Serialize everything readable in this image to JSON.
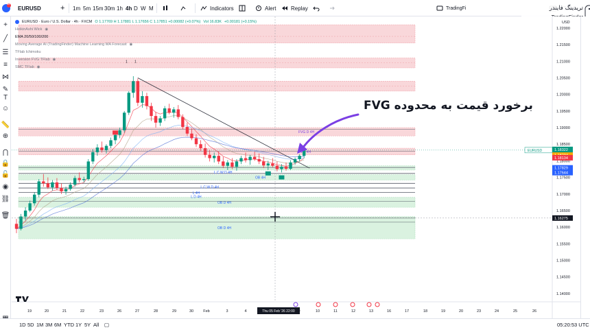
{
  "toolbar": {
    "badge_count": "18",
    "symbol": "EURUSD",
    "add_symbol": "+",
    "timeframes": [
      "1m",
      "5m",
      "15m",
      "30m",
      "1h",
      "4h",
      "D",
      "W",
      "M"
    ],
    "active_timeframe": "4h",
    "indicators_label": "Indicators",
    "alert_label": "Alert",
    "replay_label": "Replay",
    "trade_label": "Trade",
    "tradingfinder_short": "TradingFi"
  },
  "watermark": {
    "brand_fa": "تریدینگ فایندر",
    "brand_en": "TradingFinder"
  },
  "legend": {
    "title": "EURUSD · Euro / U.S. Dollar · 4h · FXCM",
    "ohlc": "O 1.17769  H 1.17881  L 1.17656  C 1.17851  +0.00082 (+0.07%)",
    "volume": "Vol 16.83K",
    "change": "+0.00181 (+0.15%)",
    "indicators": [
      "HeikinAshi Wick",
      "EMA 20/50/100/200",
      "Moving Average AI (TradingFinder) Machine Learning MA Forecast",
      "TFlab Ichimoku",
      "Inversion FVG TFlab",
      "SMC TFlab"
    ]
  },
  "annotation": "برخورد قیمت به محدوده FVG",
  "price_axis": {
    "currency": "USD",
    "current_symbol_label": "EURUSD",
    "current_price": "1.18322",
    "countdown": "37:06",
    "level_labels": [
      "1.18234",
      "1.18134",
      "1.17829",
      "1.17644",
      "1.16275"
    ]
  },
  "chart_data": {
    "type": "candlestick",
    "symbol": "EURUSD",
    "timeframe": "4h",
    "x_tick_labels": [
      "19",
      "20",
      "21",
      "22",
      "23",
      "26",
      "27",
      "28",
      "29",
      "30",
      "Feb",
      "3",
      "4",
      "5",
      "6",
      "9",
      "10",
      "11",
      "12",
      "13",
      "16",
      "17",
      "18",
      "19",
      "20",
      "23",
      "24",
      "25",
      "26"
    ],
    "crosshair_date_label": "Thu 05 Feb '26   22:00",
    "y_ticks": [
      1.22,
      1.215,
      1.21,
      1.205,
      1.2,
      1.195,
      1.19,
      1.185,
      1.18,
      1.175,
      1.17,
      1.165,
      1.16,
      1.155,
      1.15,
      1.145,
      1.14
    ],
    "ylim": [
      1.1375,
      1.2235
    ],
    "candles": [
      {
        "x": 0,
        "o": 1.161,
        "h": 1.1625,
        "l": 1.1582,
        "c": 1.1595
      },
      {
        "x": 1,
        "o": 1.1595,
        "h": 1.164,
        "l": 1.159,
        "c": 1.1632
      },
      {
        "x": 2,
        "o": 1.1632,
        "h": 1.166,
        "l": 1.162,
        "c": 1.165
      },
      {
        "x": 3,
        "o": 1.165,
        "h": 1.168,
        "l": 1.1645,
        "c": 1.1672
      },
      {
        "x": 4,
        "o": 1.1672,
        "h": 1.1705,
        "l": 1.1665,
        "c": 1.1698
      },
      {
        "x": 5,
        "o": 1.1698,
        "h": 1.1745,
        "l": 1.169,
        "c": 1.1738
      },
      {
        "x": 6,
        "o": 1.1738,
        "h": 1.176,
        "l": 1.1722,
        "c": 1.1732
      },
      {
        "x": 7,
        "o": 1.1732,
        "h": 1.175,
        "l": 1.1715,
        "c": 1.172
      },
      {
        "x": 8,
        "o": 1.172,
        "h": 1.1742,
        "l": 1.171,
        "c": 1.1735
      },
      {
        "x": 9,
        "o": 1.1735,
        "h": 1.1748,
        "l": 1.1712,
        "c": 1.1718
      },
      {
        "x": 10,
        "o": 1.1718,
        "h": 1.1732,
        "l": 1.17,
        "c": 1.1708
      },
      {
        "x": 11,
        "o": 1.1708,
        "h": 1.1722,
        "l": 1.1698,
        "c": 1.1715
      },
      {
        "x": 12,
        "o": 1.1715,
        "h": 1.1735,
        "l": 1.171,
        "c": 1.1728
      },
      {
        "x": 13,
        "o": 1.1728,
        "h": 1.1755,
        "l": 1.1722,
        "c": 1.1748
      },
      {
        "x": 14,
        "o": 1.1748,
        "h": 1.1765,
        "l": 1.1735,
        "c": 1.1742
      },
      {
        "x": 15,
        "o": 1.1742,
        "h": 1.1752,
        "l": 1.1735,
        "c": 1.1745
      },
      {
        "x": 16,
        "o": 1.1745,
        "h": 1.1805,
        "l": 1.174,
        "c": 1.1798
      },
      {
        "x": 17,
        "o": 1.1798,
        "h": 1.1835,
        "l": 1.179,
        "c": 1.1826
      },
      {
        "x": 18,
        "o": 1.1826,
        "h": 1.185,
        "l": 1.1815,
        "c": 1.184
      },
      {
        "x": 19,
        "o": 1.184,
        "h": 1.1858,
        "l": 1.1825,
        "c": 1.1832
      },
      {
        "x": 20,
        "o": 1.1832,
        "h": 1.185,
        "l": 1.1822,
        "c": 1.1845
      },
      {
        "x": 21,
        "o": 1.1845,
        "h": 1.187,
        "l": 1.1838,
        "c": 1.1862
      },
      {
        "x": 22,
        "o": 1.1862,
        "h": 1.1885,
        "l": 1.185,
        "c": 1.1878
      },
      {
        "x": 23,
        "o": 1.1878,
        "h": 1.19,
        "l": 1.1868,
        "c": 1.1892
      },
      {
        "x": 24,
        "o": 1.1892,
        "h": 1.195,
        "l": 1.1885,
        "c": 1.1945
      },
      {
        "x": 25,
        "o": 1.1945,
        "h": 1.201,
        "l": 1.1938,
        "c": 1.2005
      },
      {
        "x": 26,
        "o": 1.2005,
        "h": 1.2055,
        "l": 1.199,
        "c": 1.204
      },
      {
        "x": 27,
        "o": 1.204,
        "h": 1.2048,
        "l": 1.1965,
        "c": 1.1975
      },
      {
        "x": 28,
        "o": 1.1975,
        "h": 1.201,
        "l": 1.196,
        "c": 1.1995
      },
      {
        "x": 29,
        "o": 1.1995,
        "h": 1.2005,
        "l": 1.1955,
        "c": 1.1965
      },
      {
        "x": 30,
        "o": 1.1965,
        "h": 1.1975,
        "l": 1.192,
        "c": 1.1935
      },
      {
        "x": 31,
        "o": 1.1935,
        "h": 1.1948,
        "l": 1.19,
        "c": 1.1915
      },
      {
        "x": 32,
        "o": 1.1915,
        "h": 1.1935,
        "l": 1.1905,
        "c": 1.1928
      },
      {
        "x": 33,
        "o": 1.1928,
        "h": 1.1965,
        "l": 1.192,
        "c": 1.1958
      },
      {
        "x": 34,
        "o": 1.1958,
        "h": 1.1972,
        "l": 1.194,
        "c": 1.1945
      },
      {
        "x": 35,
        "o": 1.1945,
        "h": 1.1962,
        "l": 1.193,
        "c": 1.1955
      },
      {
        "x": 36,
        "o": 1.1955,
        "h": 1.1968,
        "l": 1.1925,
        "c": 1.1932
      },
      {
        "x": 37,
        "o": 1.1932,
        "h": 1.194,
        "l": 1.1895,
        "c": 1.1902
      },
      {
        "x": 38,
        "o": 1.1902,
        "h": 1.1915,
        "l": 1.1875,
        "c": 1.1882
      },
      {
        "x": 39,
        "o": 1.1882,
        "h": 1.1898,
        "l": 1.1862,
        "c": 1.1868
      },
      {
        "x": 40,
        "o": 1.1868,
        "h": 1.188,
        "l": 1.1842,
        "c": 1.185
      },
      {
        "x": 41,
        "o": 1.185,
        "h": 1.1862,
        "l": 1.183,
        "c": 1.1838
      },
      {
        "x": 42,
        "o": 1.1838,
        "h": 1.1852,
        "l": 1.181,
        "c": 1.1818
      },
      {
        "x": 43,
        "o": 1.1818,
        "h": 1.1832,
        "l": 1.1798,
        "c": 1.1808
      },
      {
        "x": 44,
        "o": 1.1808,
        "h": 1.1825,
        "l": 1.1795,
        "c": 1.1815
      },
      {
        "x": 45,
        "o": 1.1815,
        "h": 1.1828,
        "l": 1.179,
        "c": 1.1798
      },
      {
        "x": 46,
        "o": 1.1798,
        "h": 1.1812,
        "l": 1.1778,
        "c": 1.1785
      },
      {
        "x": 47,
        "o": 1.1785,
        "h": 1.1802,
        "l": 1.1772,
        "c": 1.1795
      },
      {
        "x": 48,
        "o": 1.1795,
        "h": 1.1808,
        "l": 1.1775,
        "c": 1.1782
      },
      {
        "x": 49,
        "o": 1.1782,
        "h": 1.1805,
        "l": 1.177,
        "c": 1.1798
      },
      {
        "x": 50,
        "o": 1.1798,
        "h": 1.1815,
        "l": 1.179,
        "c": 1.1808
      },
      {
        "x": 51,
        "o": 1.1808,
        "h": 1.1825,
        "l": 1.1795,
        "c": 1.1802
      },
      {
        "x": 52,
        "o": 1.1802,
        "h": 1.1818,
        "l": 1.1788,
        "c": 1.1812
      },
      {
        "x": 53,
        "o": 1.1812,
        "h": 1.1828,
        "l": 1.18,
        "c": 1.1805
      },
      {
        "x": 54,
        "o": 1.1805,
        "h": 1.1822,
        "l": 1.179,
        "c": 1.1798
      },
      {
        "x": 55,
        "o": 1.1798,
        "h": 1.1812,
        "l": 1.1778,
        "c": 1.1786
      },
      {
        "x": 56,
        "o": 1.1786,
        "h": 1.18,
        "l": 1.1772,
        "c": 1.1792
      },
      {
        "x": 57,
        "o": 1.1792,
        "h": 1.1808,
        "l": 1.178,
        "c": 1.1785
      },
      {
        "x": 58,
        "o": 1.1785,
        "h": 1.1798,
        "l": 1.1768,
        "c": 1.1775
      },
      {
        "x": 59,
        "o": 1.1775,
        "h": 1.179,
        "l": 1.1765,
        "c": 1.1782
      },
      {
        "x": 60,
        "o": 1.1782,
        "h": 1.1795,
        "l": 1.177,
        "c": 1.1776
      },
      {
        "x": 61,
        "o": 1.1776,
        "h": 1.1802,
        "l": 1.1772,
        "c": 1.1795
      },
      {
        "x": 62,
        "o": 1.1795,
        "h": 1.181,
        "l": 1.1788,
        "c": 1.1805
      },
      {
        "x": 63,
        "o": 1.1805,
        "h": 1.182,
        "l": 1.1798,
        "c": 1.1815
      },
      {
        "x": 64,
        "o": 1.1815,
        "h": 1.1832,
        "l": 1.1808,
        "c": 1.1832
      }
    ],
    "levels": [
      {
        "name": "resistance",
        "y": 1.2175
      },
      {
        "name": "resistance",
        "y": 1.2095
      },
      {
        "name": "resistance",
        "y": 1.2025
      },
      {
        "name": "fvg-upper",
        "y": 1.1895
      },
      {
        "name": "fvg-4h",
        "y": 1.1829
      },
      {
        "name": "support",
        "y": 1.178
      },
      {
        "name": "support",
        "y": 1.1762
      },
      {
        "name": "support",
        "y": 1.1732
      },
      {
        "name": "support",
        "y": 1.1718
      },
      {
        "name": "support",
        "y": 1.1705
      },
      {
        "name": "ob-d-4h",
        "y": 1.1678
      },
      {
        "name": "ob-d-4h",
        "y": 1.1615
      },
      {
        "name": "marker",
        "y": 1.16275
      }
    ],
    "zones": [
      {
        "label": "",
        "y1": 1.221,
        "y2": 1.2155,
        "color": "#f7c9cd"
      },
      {
        "label": "",
        "y1": 1.211,
        "y2": 1.208,
        "color": "#f7c9cd"
      },
      {
        "label": "",
        "y1": 1.204,
        "y2": 1.201,
        "color": "#f7c9cd"
      },
      {
        "label": "FVG D 4H",
        "y1": 1.19,
        "y2": 1.1875,
        "color": "#f7c9cd"
      },
      {
        "label": "FVG 4H",
        "y1": 1.1838,
        "y2": 1.1818,
        "color": "#f7c9cd"
      },
      {
        "label": "",
        "y1": 1.1785,
        "y2": 1.1772,
        "color": "#cdeed6"
      },
      {
        "label": "OB 4H",
        "y1": 1.1758,
        "y2": 1.1742,
        "color": "#cdeed6"
      },
      {
        "label": "OB D 4H",
        "y1": 1.169,
        "y2": 1.166,
        "color": "#cdeed6"
      },
      {
        "label": "OB D 4H",
        "y1": 1.1632,
        "y2": 1.1565,
        "color": "#cdeed6"
      }
    ],
    "annotations_text": [
      "1",
      "1",
      "L C W D 4H",
      "L C W D 4H",
      "L 4H",
      "L D 4H"
    ],
    "trendline": {
      "x1": 27,
      "y1": 1.205,
      "x2": 64,
      "y2": 1.1778
    },
    "colors": {
      "up": "#089981",
      "down": "#f23645",
      "arrow": "#7b3fe4",
      "current": "#089981"
    }
  },
  "bottom": {
    "ranges": [
      "1D",
      "5D",
      "1M",
      "3M",
      "6M",
      "YTD",
      "1Y",
      "5Y",
      "All"
    ],
    "time": "05:20:53 UTC"
  }
}
